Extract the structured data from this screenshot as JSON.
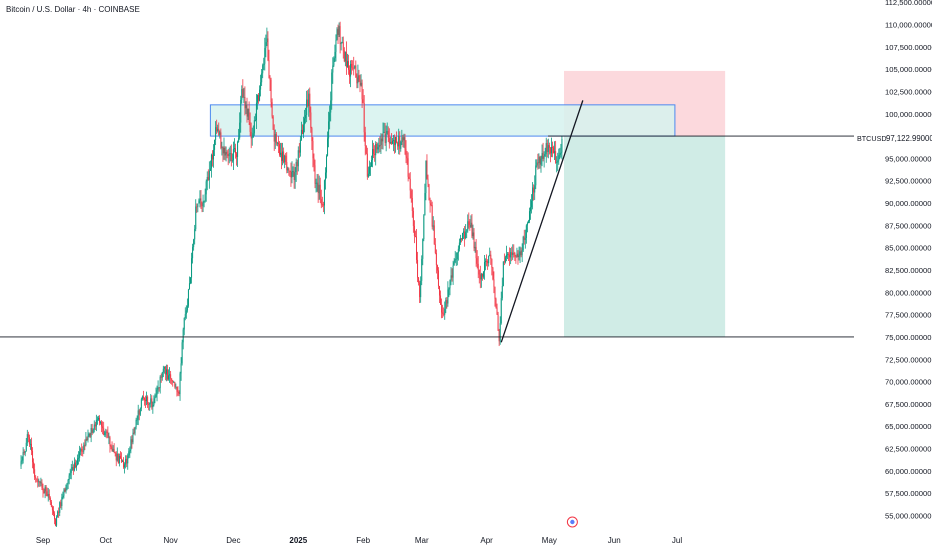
{
  "chart_data": {
    "type": "candlestick",
    "title": "Bitcoin / U.S. Dollar · 4h · COINBASE",
    "symbol": "BTCUSD",
    "last_price_label": "97,122.99000",
    "y_range": [
      54000,
      113000
    ],
    "x_range": [
      "2024-08-21",
      "2025-07-24"
    ],
    "y_ticks": [
      "55,000.00000",
      "57,500.00000",
      "60,000.00000",
      "62,500.00000",
      "65,000.00000",
      "67,500.00000",
      "70,000.00000",
      "72,500.00000",
      "75,000.00000",
      "77,500.00000",
      "80,000.00000",
      "82,500.00000",
      "85,000.00000",
      "87,500.00000",
      "90,000.00000",
      "92,500.00000",
      "95,000.00000",
      "97,500.00000",
      "100,000.00000",
      "102,500.00000",
      "105,000.00000",
      "107,500.00000",
      "110,000.00000",
      "112,500.00000"
    ],
    "x_ticks": [
      {
        "label": "Sep",
        "date": "2024-09-01"
      },
      {
        "label": "Oct",
        "date": "2024-10-01"
      },
      {
        "label": "Nov",
        "date": "2024-11-01"
      },
      {
        "label": "Dec",
        "date": "2024-12-01"
      },
      {
        "label": "2025",
        "date": "2025-01-01"
      },
      {
        "label": "Feb",
        "date": "2025-02-01"
      },
      {
        "label": "Mar",
        "date": "2025-03-01"
      },
      {
        "label": "Apr",
        "date": "2025-04-01"
      },
      {
        "label": "May",
        "date": "2025-05-01"
      },
      {
        "label": "Jun",
        "date": "2025-06-01"
      },
      {
        "label": "Jul",
        "date": "2025-07-01"
      }
    ],
    "price_path": [
      [
        "2024-08-21",
        60500
      ],
      [
        "2024-08-25",
        64000
      ],
      [
        "2024-08-28",
        59500
      ],
      [
        "2024-09-03",
        57500
      ],
      [
        "2024-09-07",
        54000
      ],
      [
        "2024-09-10",
        57000
      ],
      [
        "2024-09-14",
        60000
      ],
      [
        "2024-09-18",
        61500
      ],
      [
        "2024-09-22",
        63500
      ],
      [
        "2024-09-27",
        66000
      ],
      [
        "2024-10-01",
        64000
      ],
      [
        "2024-10-05",
        62000
      ],
      [
        "2024-10-10",
        60500
      ],
      [
        "2024-10-14",
        64000
      ],
      [
        "2024-10-19",
        68500
      ],
      [
        "2024-10-23",
        67500
      ],
      [
        "2024-10-29",
        71500
      ],
      [
        "2024-11-02",
        69500
      ],
      [
        "2024-11-05",
        68500
      ],
      [
        "2024-11-07",
        76000
      ],
      [
        "2024-11-10",
        80500
      ],
      [
        "2024-11-13",
        89000
      ],
      [
        "2024-11-17",
        90500
      ],
      [
        "2024-11-20",
        94000
      ],
      [
        "2024-11-23",
        98500
      ],
      [
        "2024-11-27",
        95000
      ],
      [
        "2024-12-03",
        96000
      ],
      [
        "2024-12-05",
        103000
      ],
      [
        "2024-12-10",
        97500
      ],
      [
        "2024-12-17",
        108500
      ],
      [
        "2024-12-20",
        97500
      ],
      [
        "2024-12-26",
        94500
      ],
      [
        "2024-12-30",
        93000
      ],
      [
        "2025-01-06",
        102000
      ],
      [
        "2025-01-09",
        92500
      ],
      [
        "2025-01-13",
        90000
      ],
      [
        "2025-01-17",
        104000
      ],
      [
        "2025-01-20",
        109500
      ],
      [
        "2025-01-25",
        105000
      ],
      [
        "2025-01-31",
        104000
      ],
      [
        "2025-02-03",
        93500
      ],
      [
        "2025-02-08",
        97000
      ],
      [
        "2025-02-15",
        97500
      ],
      [
        "2025-02-21",
        96500
      ],
      [
        "2025-02-26",
        85500
      ],
      [
        "2025-02-28",
        79000
      ],
      [
        "2025-03-03",
        94000
      ],
      [
        "2025-03-06",
        88000
      ],
      [
        "2025-03-11",
        77000
      ],
      [
        "2025-03-17",
        84000
      ],
      [
        "2025-03-24",
        88000
      ],
      [
        "2025-03-29",
        82000
      ],
      [
        "2025-04-03",
        84000
      ],
      [
        "2025-04-07",
        74500
      ],
      [
        "2025-04-09",
        83000
      ],
      [
        "2025-04-12",
        84500
      ],
      [
        "2025-04-17",
        84500
      ],
      [
        "2025-04-21",
        87500
      ],
      [
        "2025-04-25",
        94500
      ],
      [
        "2025-05-01",
        96500
      ],
      [
        "2025-05-03",
        95500
      ],
      [
        "2025-05-05",
        94500
      ],
      [
        "2025-05-07",
        97122.99
      ]
    ],
    "annotations": {
      "supply_zone": {
        "x_start": "2024-11-20",
        "x_end": "2025-06-30",
        "y_low": 97500,
        "y_high": 101000,
        "color": "#d6f2ee",
        "border": "#4d88f0"
      },
      "horizontal_lines": [
        97500,
        75000
      ],
      "trendline": {
        "from": [
          "2025-04-08",
          74400
        ],
        "to": [
          "2025-05-17",
          101500
        ]
      },
      "position": {
        "x_start": "2025-05-08",
        "x_end": "2025-07-24",
        "entry": 97500,
        "stop": 104800,
        "target": 75000,
        "stop_color": "#fcd9dd",
        "target_color": "#d0ece6"
      }
    },
    "colors": {
      "up": "#089981",
      "down": "#f23645",
      "line": "#131722",
      "zone": "#4d88f0",
      "text": "#131722"
    },
    "grid": false,
    "legend": "none"
  }
}
